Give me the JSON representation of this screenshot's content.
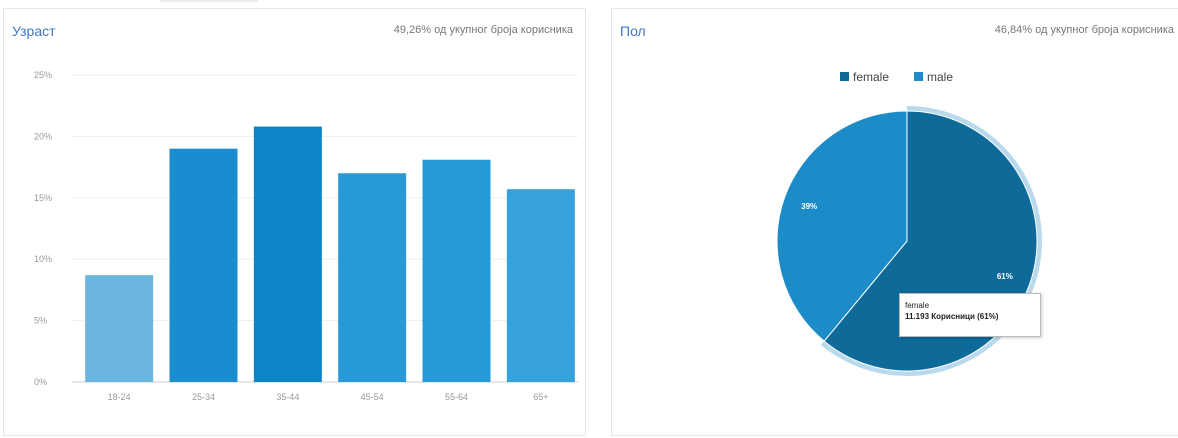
{
  "age_panel": {
    "title": "Узраст",
    "subtitle": "49,26% од укупног броја корисника"
  },
  "gender_panel": {
    "title": "Пол",
    "subtitle": "46,84% од укупног броја корисника",
    "tooltip": {
      "category": "female",
      "value": "11.193 Корисници (61%)"
    }
  },
  "chart_data": [
    {
      "type": "bar",
      "title": "Узраст",
      "categories": [
        "18-24",
        "25-34",
        "35-44",
        "45-54",
        "55-64",
        "65+"
      ],
      "values": [
        8.7,
        19.0,
        20.8,
        17.0,
        18.1,
        15.7
      ],
      "value_unit": "%",
      "y_ticks": [
        "0%",
        "5%",
        "10%",
        "15%",
        "20%",
        "25%"
      ],
      "ylim": [
        0,
        25
      ],
      "grid": true,
      "colors": [
        "#6bb6e0",
        "#1a8dd0",
        "#0d84c6",
        "#2899d7",
        "#2899d7",
        "#36a2dc"
      ]
    },
    {
      "type": "pie",
      "title": "Пол",
      "legend": [
        "female",
        "male"
      ],
      "legend_position": "top",
      "slices": [
        {
          "name": "female",
          "value": 61,
          "label": "61%",
          "color": "#0e6a99"
        },
        {
          "name": "male",
          "value": 39,
          "label": "39%",
          "color": "#1b8cc7"
        }
      ]
    }
  ]
}
